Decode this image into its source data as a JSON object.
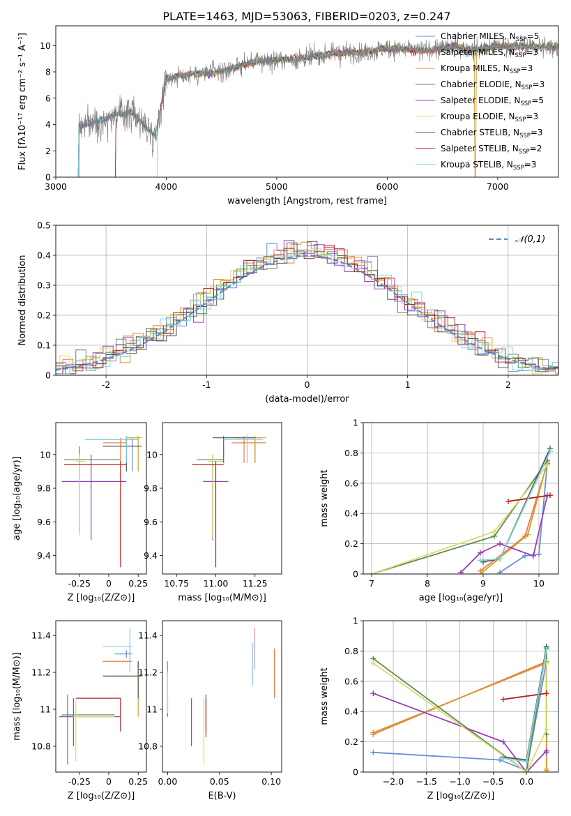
{
  "figure_title": "PLATE=1463, MJD=53063, FIBERID=0203, z=0.247",
  "colors": [
    "#6a8fd6",
    "#ed7b3f",
    "#d49a2f",
    "#5b8a5b",
    "#9a3db5",
    "#d8dc6a",
    "#555555",
    "#b22222",
    "#7fd3d6",
    "#e48fbf",
    "#c8e06a",
    "#555555"
  ],
  "chart_data": [
    {
      "type": "line",
      "xlabel": "wavelength [Angstrom, rest frame]",
      "ylabel": "Flux [fλ10⁻¹⁷ erg cm⁻² s⁻¹ A⁻¹]",
      "xlim": [
        3000,
        7550
      ],
      "ylim": [
        0,
        11.5
      ],
      "xticks": [
        3000,
        4000,
        5000,
        6000,
        7000
      ],
      "yticks": [
        0,
        2,
        4,
        6,
        8,
        10
      ],
      "legend_position": "top-right",
      "series": [
        {
          "name": "Chabrier MILES, N_SSP=5",
          "label_main": "Chabrier MILES, N",
          "label_sub": "SSP",
          "label_tail": "=5"
        },
        {
          "name": "Salpeter MILES, N_SSP=3",
          "label_main": "Salpeter MILES, N",
          "label_sub": "SSP",
          "label_tail": "=3"
        },
        {
          "name": "Kroupa MILES, N_SSP=3",
          "label_main": "Kroupa MILES, N",
          "label_sub": "SSP",
          "label_tail": "=3"
        },
        {
          "name": "Chabrier ELODIE, N_SSP=3",
          "label_main": "Chabrier ELODIE, N",
          "label_sub": "SSP",
          "label_tail": "=3"
        },
        {
          "name": "Salpeter ELODIE, N_SSP=5",
          "label_main": "Salpeter ELODIE, N",
          "label_sub": "SSP",
          "label_tail": "=5"
        },
        {
          "name": "Kroupa ELODIE, N_SSP=3",
          "label_main": "Kroupa ELODIE, N",
          "label_sub": "SSP",
          "label_tail": "=3"
        },
        {
          "name": "Chabrier STELIB, N_SSP=3",
          "label_main": "Chabrier STELIB, N",
          "label_sub": "SSP",
          "label_tail": "=3"
        },
        {
          "name": "Salpeter STELIB, N_SSP=2",
          "label_main": "Salpeter STELIB, N",
          "label_sub": "SSP",
          "label_tail": "=2"
        },
        {
          "name": "Kroupa STELIB, N_SSP=3",
          "label_main": "Kroupa STELIB, N",
          "label_sub": "SSP",
          "label_tail": "=3"
        }
      ],
      "spectrum_model": {
        "x": [
          3210,
          3400,
          3550,
          3700,
          3900,
          4000,
          4200,
          4500,
          4800,
          5000,
          5200,
          5500,
          5800,
          6000,
          6300,
          6600,
          6800,
          7000,
          7300,
          7550
        ],
        "y": [
          3.9,
          4.3,
          4.8,
          4.9,
          3.1,
          7.5,
          7.8,
          8.0,
          8.8,
          8.9,
          9.0,
          9.4,
          9.5,
          9.8,
          9.6,
          9.9,
          9.7,
          10.0,
          9.9,
          9.9
        ]
      }
    },
    {
      "type": "step-histogram",
      "xlabel": "(data-model)/error",
      "ylabel": "Normed distribution",
      "xlim": [
        -2.5,
        2.5
      ],
      "ylim": [
        0,
        0.5
      ],
      "xticks": [
        -2,
        -1,
        0,
        1,
        2
      ],
      "yticks": [
        0.0,
        0.1,
        0.2,
        0.3,
        0.4,
        0.5
      ],
      "grid": true,
      "legend_position": "top-right",
      "legend_label": "𝒩(0,1)",
      "bin_width": 0.1,
      "reference_curve": "normal(0,1)"
    },
    {
      "type": "scatter-errorbar",
      "xlabel": "Z [log₁₀(Z/Z⊙)]",
      "ylabel": "age  [log₁₀(age/yr)]",
      "xlim": [
        -0.45,
        0.32
      ],
      "ylim": [
        9.29,
        10.19
      ],
      "xticks": [
        -0.25,
        0.0,
        0.25
      ],
      "yticks": [
        9.4,
        9.6,
        9.8,
        10.0
      ],
      "points": [
        {
          "x": 0.2,
          "y": 10.09,
          "xlo": -0.2,
          "xhi": 0.25,
          "ylo": 9.9,
          "yhi": 10.1
        },
        {
          "x": 0.1,
          "y": 10.07,
          "xlo": -0.05,
          "xhi": 0.15,
          "ylo": 9.95,
          "yhi": 10.1
        },
        {
          "x": 0.25,
          "y": 10.1,
          "xlo": 0.15,
          "xhi": 0.28,
          "ylo": 9.9,
          "yhi": 10.11
        },
        {
          "x": -0.25,
          "y": 9.97,
          "xlo": -0.38,
          "xhi": 0.1,
          "ylo": 9.54,
          "yhi": 10.05
        },
        {
          "x": -0.15,
          "y": 9.84,
          "xlo": -0.4,
          "xhi": 0.15,
          "ylo": 9.49,
          "yhi": 10.0
        },
        {
          "x": -0.25,
          "y": 9.96,
          "xlo": -0.28,
          "xhi": -0.2,
          "ylo": 9.52,
          "yhi": 10.0
        },
        {
          "x": 0.15,
          "y": 10.05,
          "xlo": -0.05,
          "xhi": 0.28,
          "ylo": 9.9,
          "yhi": 10.11
        },
        {
          "x": 0.1,
          "y": 9.94,
          "xlo": -0.38,
          "xhi": 0.15,
          "ylo": 9.33,
          "yhi": 9.96
        },
        {
          "x": 0.15,
          "y": 10.09,
          "xlo": -0.2,
          "xhi": 0.25,
          "ylo": 9.95,
          "yhi": 10.11
        }
      ]
    },
    {
      "type": "scatter-errorbar",
      "xlabel": "mass [log₁₀(M/M⊙)]",
      "ylabel": "",
      "xlim": [
        10.66,
        11.42
      ],
      "ylim": [
        9.29,
        10.19
      ],
      "xticks": [
        10.75,
        11.0,
        11.25
      ],
      "xticklabels": [
        "10.75",
        "11.00",
        "11.25"
      ],
      "yticks": [
        9.4,
        9.6,
        9.8,
        10.0
      ],
      "points": [
        {
          "x": 11.25,
          "y": 10.07,
          "xlo": 11.15,
          "xhi": 11.32,
          "ylo": 9.95,
          "yhi": 10.11
        },
        {
          "x": 11.18,
          "y": 10.07,
          "xlo": 11.1,
          "xhi": 11.3,
          "ylo": 9.95,
          "yhi": 10.11
        },
        {
          "x": 11.25,
          "y": 10.1,
          "xlo": 11.12,
          "xhi": 11.32,
          "ylo": 9.95,
          "yhi": 10.11
        },
        {
          "x": 10.98,
          "y": 9.97,
          "xlo": 10.88,
          "xhi": 11.05,
          "ylo": 9.5,
          "yhi": 10.0
        },
        {
          "x": 10.98,
          "y": 9.84,
          "xlo": 10.92,
          "xhi": 11.08,
          "ylo": 9.49,
          "yhi": 10.0
        },
        {
          "x": 10.98,
          "y": 9.96,
          "xlo": 10.95,
          "xhi": 11.05,
          "ylo": 9.5,
          "yhi": 10.0
        },
        {
          "x": 11.05,
          "y": 10.1,
          "xlo": 10.98,
          "xhi": 11.25,
          "ylo": 9.95,
          "yhi": 10.11
        },
        {
          "x": 11.0,
          "y": 9.94,
          "xlo": 10.85,
          "xhi": 11.05,
          "ylo": 9.33,
          "yhi": 9.96
        },
        {
          "x": 11.2,
          "y": 10.09,
          "xlo": 11.05,
          "xhi": 11.3,
          "ylo": 9.95,
          "yhi": 10.12
        }
      ]
    },
    {
      "type": "line",
      "xlabel": "age  [log₁₀(age/yr)]",
      "ylabel": "mass weight",
      "xlim": [
        6.85,
        10.35
      ],
      "ylim": [
        0,
        1.0
      ],
      "xticks": [
        7,
        8,
        9,
        10
      ],
      "yticks": [
        0.0,
        0.2,
        0.4,
        0.6,
        0.8,
        1.0
      ],
      "grid": true,
      "series": [
        {
          "x": [
            9.3,
            9.75,
            10.0,
            10.15
          ],
          "y": [
            0.01,
            0.12,
            0.13,
            0.73
          ]
        },
        {
          "x": [
            8.95,
            9.75,
            10.15
          ],
          "y": [
            0.02,
            0.25,
            0.73
          ]
        },
        {
          "x": [
            8.95,
            9.8,
            10.15
          ],
          "y": [
            0.0,
            0.26,
            0.74
          ]
        },
        {
          "x": [
            7.0,
            9.2,
            10.15
          ],
          "y": [
            0.0,
            0.25,
            0.75
          ]
        },
        {
          "x": [
            8.6,
            8.95,
            9.3,
            9.9,
            10.15
          ],
          "y": [
            0.01,
            0.14,
            0.2,
            0.12,
            0.52
          ]
        },
        {
          "x": [
            7.0,
            9.2,
            10.15
          ],
          "y": [
            0.0,
            0.28,
            0.72
          ]
        },
        {
          "x": [
            9.0,
            9.3,
            10.2
          ],
          "y": [
            0.08,
            0.1,
            0.83
          ]
        },
        {
          "x": [
            9.45,
            10.2
          ],
          "y": [
            0.48,
            0.52
          ]
        },
        {
          "x": [
            8.95,
            9.3,
            10.2
          ],
          "y": [
            0.09,
            0.1,
            0.81
          ]
        }
      ]
    },
    {
      "type": "scatter-errorbar",
      "xlabel": "Z [log₁₀(Z/Z⊙)]",
      "ylabel": "mass [log₁₀(M/M⊙)]",
      "xlim": [
        -0.45,
        0.32
      ],
      "ylim": [
        10.66,
        11.48
      ],
      "xticks": [
        -0.25,
        0.0,
        0.25
      ],
      "yticks": [
        10.8,
        11.0,
        11.2,
        11.4
      ],
      "points": [
        {
          "x": 0.15,
          "y": 11.3,
          "xlo": 0.05,
          "xhi": 0.2,
          "ylo": 11.28,
          "yhi": 11.32
        },
        {
          "x": 0.18,
          "y": 11.26,
          "xlo": -0.05,
          "xhi": 0.2,
          "ylo": 11.2,
          "yhi": 11.36
        },
        {
          "x": 0.25,
          "y": 11.18,
          "xlo": -0.05,
          "xhi": 0.28,
          "ylo": 10.96,
          "yhi": 11.26
        },
        {
          "x": -0.35,
          "y": 10.97,
          "xlo": -0.4,
          "xhi": 0.05,
          "ylo": 10.7,
          "yhi": 11.08
        },
        {
          "x": -0.3,
          "y": 10.96,
          "xlo": -0.42,
          "xhi": 0.1,
          "ylo": 10.8,
          "yhi": 11.06
        },
        {
          "x": -0.28,
          "y": 10.96,
          "xlo": -0.3,
          "xhi": 0.05,
          "ylo": 10.72,
          "yhi": 11.05
        },
        {
          "x": 0.25,
          "y": 11.18,
          "xlo": -0.05,
          "xhi": 0.28,
          "ylo": 11.06,
          "yhi": 11.26
        },
        {
          "x": 0.1,
          "y": 11.06,
          "xlo": -0.28,
          "xhi": 0.1,
          "ylo": 10.88,
          "yhi": 11.06
        },
        {
          "x": 0.18,
          "y": 11.34,
          "xlo": -0.05,
          "xhi": 0.2,
          "ylo": 11.2,
          "yhi": 11.44
        }
      ]
    },
    {
      "type": "scatter-errorbar",
      "xlabel": "E(B-V)",
      "ylabel": "",
      "xlim": [
        -0.005,
        0.11
      ],
      "ylim": [
        10.66,
        11.48
      ],
      "xticks": [
        0.0,
        0.05,
        0.1
      ],
      "xticklabels": [
        "0.00",
        "0.05",
        "0.10"
      ],
      "yticks": [
        10.8,
        11.0,
        11.2,
        11.4
      ],
      "points": [
        {
          "x": 0.0,
          "y": 11.2,
          "xlo": 0.0,
          "xhi": 0.0,
          "ylo": 11.0,
          "yhi": 11.26
        },
        {
          "x": 0.103,
          "y": 11.2,
          "xlo": 0.103,
          "xhi": 0.103,
          "ylo": 11.06,
          "yhi": 11.33
        },
        {
          "x": 0.0,
          "y": 11.1,
          "xlo": 0.0,
          "xhi": 0.0,
          "ylo": 10.98,
          "yhi": 11.22
        },
        {
          "x": 0.0,
          "y": 11.0,
          "xlo": 0.0,
          "xhi": 0.0,
          "ylo": 10.96,
          "yhi": 11.06
        },
        {
          "x": 0.023,
          "y": 10.9,
          "xlo": 0.023,
          "xhi": 0.023,
          "ylo": 10.8,
          "yhi": 11.06
        },
        {
          "x": 0.035,
          "y": 10.96,
          "xlo": 0.035,
          "xhi": 0.035,
          "ylo": 10.7,
          "yhi": 11.06
        },
        {
          "x": 0.037,
          "y": 11.0,
          "xlo": 0.037,
          "xhi": 0.037,
          "ylo": 10.88,
          "yhi": 11.08
        },
        {
          "x": 0.037,
          "y": 11.0,
          "xlo": 0.037,
          "xhi": 0.037,
          "ylo": 10.85,
          "yhi": 11.06
        },
        {
          "x": 0.082,
          "y": 11.25,
          "xlo": 0.082,
          "xhi": 0.082,
          "ylo": 11.13,
          "yhi": 11.36
        },
        {
          "x": 0.084,
          "y": 11.3,
          "xlo": 0.084,
          "xhi": 0.084,
          "ylo": 11.22,
          "yhi": 11.44
        },
        {
          "x": 0.0,
          "y": 11.08,
          "xlo": 0.0,
          "xhi": 0.0,
          "ylo": 10.98,
          "yhi": 11.2
        }
      ]
    },
    {
      "type": "line",
      "xlabel": "Z [log₁₀(Z/Z⊙)]",
      "ylabel": "mass weight",
      "xlim": [
        -2.45,
        0.48
      ],
      "ylim": [
        0,
        1.0
      ],
      "xticks": [
        -2.0,
        -1.5,
        -1.0,
        -0.5,
        0.0
      ],
      "xticklabels": [
        "−2.0",
        "−1.5",
        "−1.0",
        "−0.5",
        "0.0"
      ],
      "yticks": [
        0.0,
        0.2,
        0.4,
        0.6,
        0.8,
        1.0
      ],
      "grid": true,
      "series": [
        {
          "x": [
            -2.3,
            -0.4,
            0.0,
            0.3
          ],
          "y": [
            0.13,
            0.08,
            0.01,
            0.73
          ]
        },
        {
          "x": [
            -2.3,
            0.3,
            0.3
          ],
          "y": [
            0.25,
            0.73,
            0.01
          ]
        },
        {
          "x": [
            -2.3,
            0.3,
            0.3
          ],
          "y": [
            0.26,
            0.72,
            0.02
          ]
        },
        {
          "x": [
            -2.3,
            0.0,
            0.3,
            0.3
          ],
          "y": [
            0.75,
            0.0,
            0.82,
            0.25
          ]
        },
        {
          "x": [
            -2.3,
            -0.35,
            0.0,
            0.3,
            0.3
          ],
          "y": [
            0.52,
            0.2,
            0.0,
            0.14,
            0.13
          ]
        },
        {
          "x": [
            -2.3,
            0.0,
            0.3,
            0.3
          ],
          "y": [
            0.72,
            0.0,
            0.28,
            0.72
          ]
        },
        {
          "x": [
            -0.35,
            0.0,
            0.3
          ],
          "y": [
            0.1,
            0.08,
            0.83
          ]
        },
        {
          "x": [
            -0.35,
            0.3
          ],
          "y": [
            0.48,
            0.52
          ]
        },
        {
          "x": [
            -0.35,
            0.0,
            0.3
          ],
          "y": [
            0.09,
            0.07,
            0.81
          ]
        }
      ]
    }
  ]
}
